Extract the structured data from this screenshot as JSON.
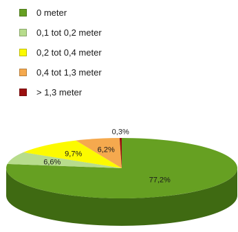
{
  "chart_data": {
    "type": "pie",
    "title": "",
    "legend_placement": "top-left",
    "slices": [
      {
        "label": "0 meter",
        "value": 77.2,
        "value_label": "77,2%",
        "color": "#66a022",
        "side_color": "#3f6a12"
      },
      {
        "label": "0,1 tot 0,2 meter",
        "value": 6.6,
        "value_label": "6,6%",
        "color": "#b7dc8c",
        "side_color": "#7f9f5c"
      },
      {
        "label": "0,2 tot 0,4 meter",
        "value": 9.7,
        "value_label": "9,7%",
        "color": "#fcfa00",
        "side_color": "#a8a600"
      },
      {
        "label": "0,4 tot 1,3 meter",
        "value": 6.2,
        "value_label": "6,2%",
        "color": "#f5a94e",
        "side_color": "#a8702c"
      },
      {
        "label": "> 1,3 meter",
        "value": 0.3,
        "value_label": "0,3%",
        "color": "#9b1010",
        "side_color": "#5e0808"
      }
    ]
  }
}
